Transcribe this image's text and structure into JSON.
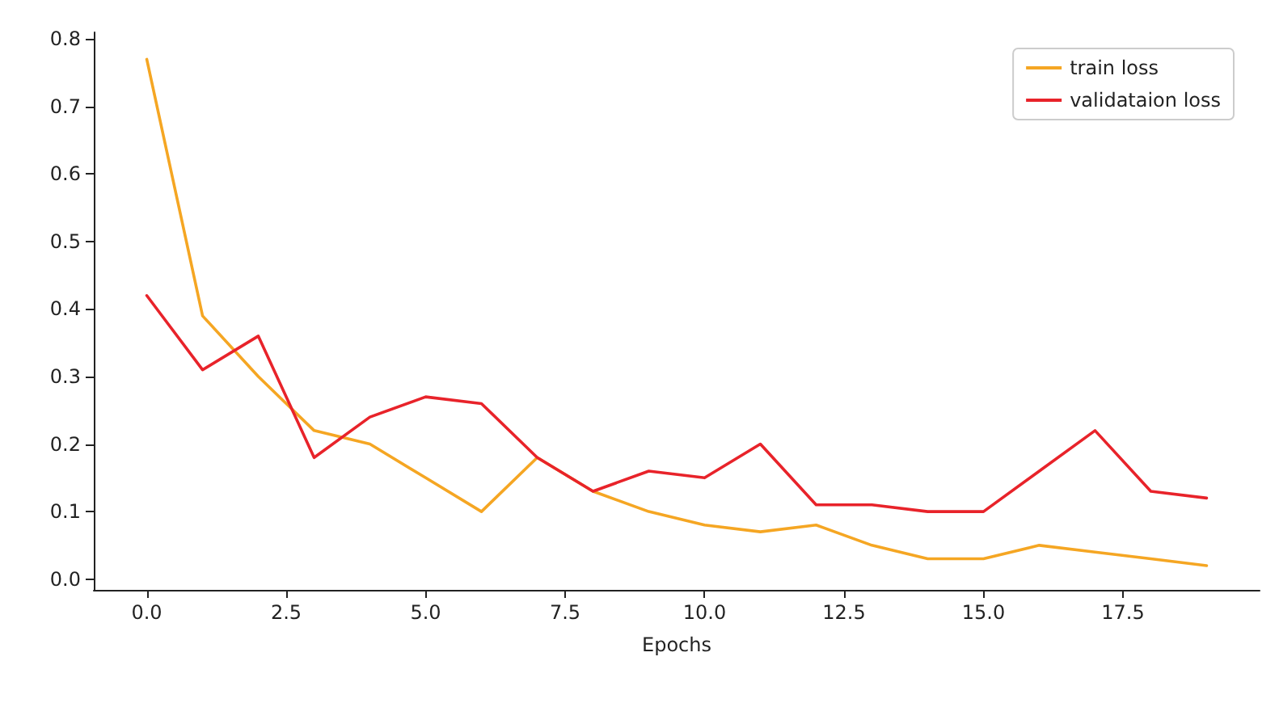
{
  "chart_data": {
    "type": "line",
    "xlabel": "Epochs",
    "x": [
      0,
      1,
      2,
      3,
      4,
      5,
      6,
      7,
      8,
      9,
      10,
      11,
      12,
      13,
      14,
      15,
      16,
      17,
      18,
      19
    ],
    "series": [
      {
        "name": "train loss",
        "color": "#f5a623",
        "values": [
          0.77,
          0.39,
          0.3,
          0.22,
          0.2,
          0.15,
          0.1,
          0.18,
          0.13,
          0.1,
          0.08,
          0.07,
          0.08,
          0.05,
          0.03,
          0.03,
          0.05,
          0.04,
          0.03,
          0.02
        ]
      },
      {
        "name": "validataion loss",
        "color": "#e8232a",
        "values": [
          0.42,
          0.31,
          0.36,
          0.18,
          0.24,
          0.27,
          0.26,
          0.18,
          0.13,
          0.16,
          0.15,
          0.2,
          0.11,
          0.11,
          0.1,
          0.1,
          0.16,
          0.22,
          0.13,
          0.12
        ]
      }
    ],
    "xlim": [
      -0.95,
      19.95
    ],
    "xticks": [
      {
        "value": 0,
        "label": "0.0"
      },
      {
        "value": 2.5,
        "label": "2.5"
      },
      {
        "value": 5,
        "label": "5.0"
      },
      {
        "value": 7.5,
        "label": "7.5"
      },
      {
        "value": 10,
        "label": "10.0"
      },
      {
        "value": 12.5,
        "label": "12.5"
      },
      {
        "value": 15,
        "label": "15.0"
      },
      {
        "value": 17.5,
        "label": "17.5"
      }
    ],
    "ylim": [
      -0.016,
      0.81
    ],
    "yticks": [
      {
        "value": 0,
        "label": "0.0"
      },
      0.1,
      0.2,
      0.3,
      0.4,
      0.5,
      0.6,
      0.7,
      0.8
    ],
    "legend": "top right",
    "grid": false,
    "marker": "none",
    "line_style": "solid"
  }
}
